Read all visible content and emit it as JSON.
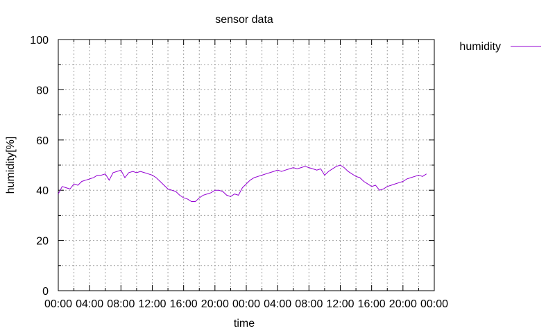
{
  "chart_data": {
    "type": "line",
    "title": "sensor data",
    "xlabel": "time",
    "ylabel": "humidity[%]",
    "ylim": [
      0,
      100
    ],
    "yticks": [
      "0",
      "20",
      "40",
      "60",
      "80",
      "100"
    ],
    "xlim_hours": [
      0,
      48
    ],
    "xticks": [
      "00:00",
      "04:00",
      "08:00",
      "12:00",
      "16:00",
      "20:00",
      "00:00",
      "04:00",
      "08:00",
      "12:00",
      "16:00",
      "20:00",
      "00:00"
    ],
    "grid": true,
    "legend_position": "top-right",
    "series": [
      {
        "name": "humidity",
        "color": "#9400d3",
        "x_hours": [
          0,
          0.5,
          1,
          1.5,
          2,
          2.5,
          3,
          3.5,
          4,
          4.5,
          5,
          5.5,
          6,
          6.5,
          7,
          7.5,
          8,
          8.5,
          9,
          9.5,
          10,
          10.5,
          11,
          11.5,
          12,
          12.5,
          13,
          13.5,
          14,
          14.5,
          15,
          15.5,
          16,
          16.5,
          17,
          17.5,
          18,
          18.5,
          19,
          19.5,
          20,
          20.5,
          21,
          21.5,
          22,
          22.5,
          23,
          23.5,
          24,
          24.5,
          25,
          25.5,
          26,
          26.5,
          27,
          27.5,
          28,
          28.5,
          29,
          29.5,
          30,
          30.5,
          31,
          31.5,
          32,
          32.5,
          33,
          33.5,
          34,
          34.5,
          35,
          35.5,
          36,
          36.5,
          37,
          37.5,
          38,
          38.5,
          39,
          39.5,
          40,
          40.5,
          41,
          41.5,
          42,
          42.5,
          43,
          43.5,
          44,
          44.5,
          45,
          45.5,
          46,
          46.5,
          47
        ],
        "values": [
          38.5,
          41.5,
          41,
          40.5,
          42.5,
          42,
          43.5,
          44,
          44.5,
          45,
          46,
          46,
          46.5,
          44,
          47,
          47.5,
          48,
          45,
          47,
          47.5,
          47,
          47.5,
          47,
          46.5,
          46,
          45,
          43.5,
          42,
          40.5,
          40,
          39.5,
          38,
          37,
          36.5,
          35.5,
          35.5,
          37,
          38,
          38.5,
          39,
          40,
          40,
          39.5,
          38,
          37.5,
          38.5,
          38,
          41,
          42.5,
          44,
          45,
          45.5,
          46,
          46.5,
          47,
          47.5,
          48,
          47.5,
          48,
          48.5,
          49,
          48.5,
          49,
          49.5,
          49,
          48.5,
          48,
          48.5,
          46,
          47.5,
          48.5,
          49.5,
          50,
          49,
          47.5,
          46.5,
          45.5,
          45,
          43.5,
          42.5,
          41.5,
          42,
          40,
          40.5,
          41.5,
          42,
          42.5,
          43,
          43.5,
          44.5,
          45,
          45.5,
          46,
          45.5,
          46.5
        ]
      }
    ]
  }
}
